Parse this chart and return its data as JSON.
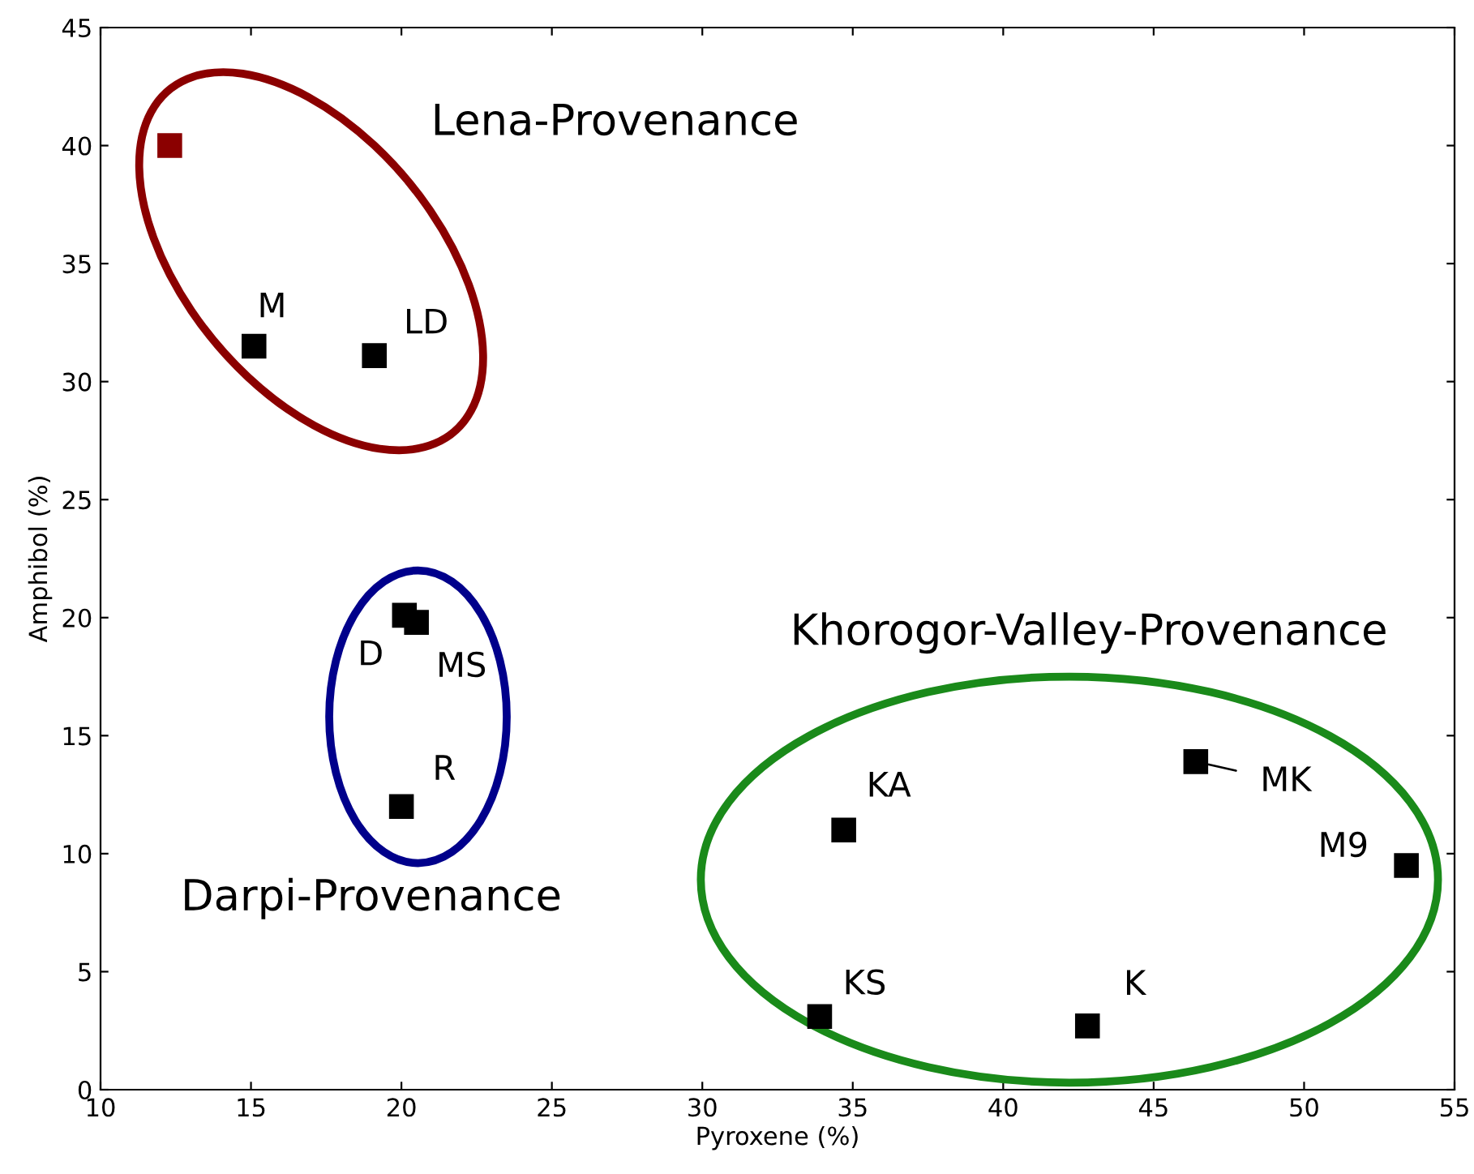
{
  "chart_data": {
    "type": "scatter",
    "xlabel": "Pyroxene (%)",
    "ylabel": "Amphibol (%)",
    "xlim": [
      10,
      55
    ],
    "xticks": [
      10,
      15,
      20,
      25,
      30,
      35,
      40,
      45,
      50,
      55
    ],
    "ylim": [
      0,
      45
    ],
    "yticks": [
      0,
      5,
      10,
      15,
      20,
      25,
      30,
      35,
      40,
      45
    ],
    "grid": false,
    "marker": "square",
    "series": [
      {
        "color": "#8b0000",
        "x": [
          12.3
        ],
        "values": [
          40.0
        ]
      },
      {
        "color": "#000000",
        "x": [
          15.1,
          19.1,
          20.1,
          20.5,
          20.0,
          34.7,
          46.4,
          53.4,
          33.9,
          42.8
        ],
        "values": [
          31.5,
          31.1,
          20.1,
          19.8,
          12.0,
          11.0,
          13.9,
          9.5,
          3.1,
          2.7
        ]
      }
    ],
    "annotations": [
      {
        "text": "M",
        "x": 15.1,
        "y": 31.5
      },
      {
        "text": "LD",
        "x": 19.1,
        "y": 31.1
      },
      {
        "text": "D",
        "x": 20.1,
        "y": 20.1
      },
      {
        "text": "MS",
        "x": 20.5,
        "y": 19.8
      },
      {
        "text": "R",
        "x": 20.0,
        "y": 12.0
      },
      {
        "text": "KA",
        "x": 34.7,
        "y": 11.0
      },
      {
        "text": "MK",
        "x": 46.4,
        "y": 13.9
      },
      {
        "text": "M9",
        "x": 53.4,
        "y": 9.5
      },
      {
        "text": "KS",
        "x": 33.9,
        "y": 3.1
      },
      {
        "text": "K",
        "x": 42.8,
        "y": 2.7
      },
      "Lena-Provenance",
      "Khorogor-Valley-Provenance",
      "Darpi-Provenance"
    ]
  }
}
